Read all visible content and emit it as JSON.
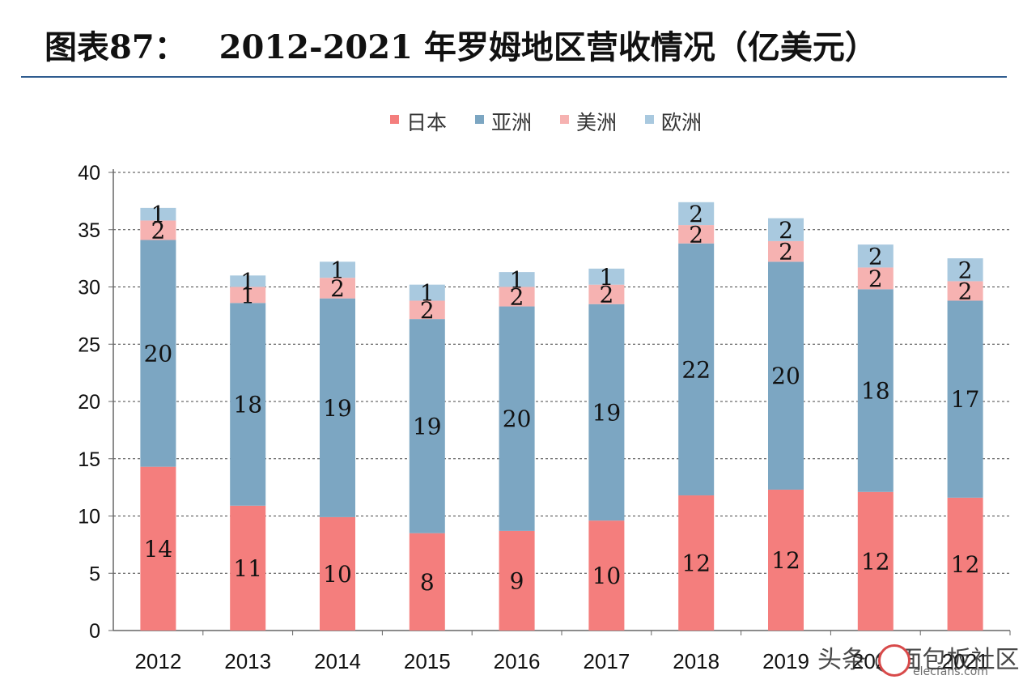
{
  "header": {
    "label": "图表87：",
    "title": "2012-2021 年罗姆地区营收情况（亿美元）"
  },
  "colors": {
    "japan": "#f47e7d",
    "asia": "#7ca6c2",
    "america": "#f6b2b1",
    "europe": "#a9c9df",
    "rule": "#2f5c8f"
  },
  "chart_data": {
    "type": "bar",
    "stacked": true,
    "title": "2012-2021 年罗姆地区营收情况（亿美元）",
    "xlabel": "",
    "ylabel": "",
    "ylim": [
      0,
      40
    ],
    "yticks": [
      "0",
      "5",
      "10",
      "15",
      "20",
      "25",
      "30",
      "35",
      "40"
    ],
    "grid": "horizontal-dashed",
    "legend_position": "top-center",
    "categories": [
      "2012",
      "2013",
      "2014",
      "2015",
      "2016",
      "2017",
      "2018",
      "2019",
      "2020",
      "2021"
    ],
    "series": [
      {
        "name": "日本",
        "color": "#f47e7d",
        "values": [
          14.3,
          10.9,
          9.9,
          8.5,
          8.7,
          9.6,
          11.8,
          12.3,
          12.1,
          11.6
        ],
        "labels": [
          "14",
          "11",
          "10",
          "8",
          "9",
          "10",
          "12",
          "12",
          "12",
          "12"
        ]
      },
      {
        "name": "亚洲",
        "color": "#7ca6c2",
        "values": [
          19.8,
          17.7,
          19.1,
          18.7,
          19.6,
          18.9,
          22.0,
          19.9,
          17.7,
          17.2
        ],
        "labels": [
          "20",
          "18",
          "19",
          "19",
          "20",
          "19",
          "22",
          "20",
          "18",
          "17"
        ]
      },
      {
        "name": "美洲",
        "color": "#f6b2b1",
        "values": [
          1.7,
          1.4,
          1.8,
          1.6,
          1.7,
          1.7,
          1.6,
          1.8,
          1.9,
          1.7
        ],
        "labels": [
          "2",
          "1",
          "2",
          "2",
          "2",
          "2",
          "2",
          "2",
          "2",
          "2"
        ]
      },
      {
        "name": "欧洲",
        "color": "#a9c9df",
        "values": [
          1.1,
          1.0,
          1.4,
          1.4,
          1.3,
          1.4,
          2.0,
          2.0,
          2.0,
          2.0
        ],
        "labels": [
          "1",
          "1",
          "1",
          "1",
          "1",
          "1",
          "2",
          "2",
          "2",
          "2"
        ]
      }
    ]
  },
  "watermark": {
    "text": "头条 @面包板社区",
    "site": "elecfans.com"
  }
}
